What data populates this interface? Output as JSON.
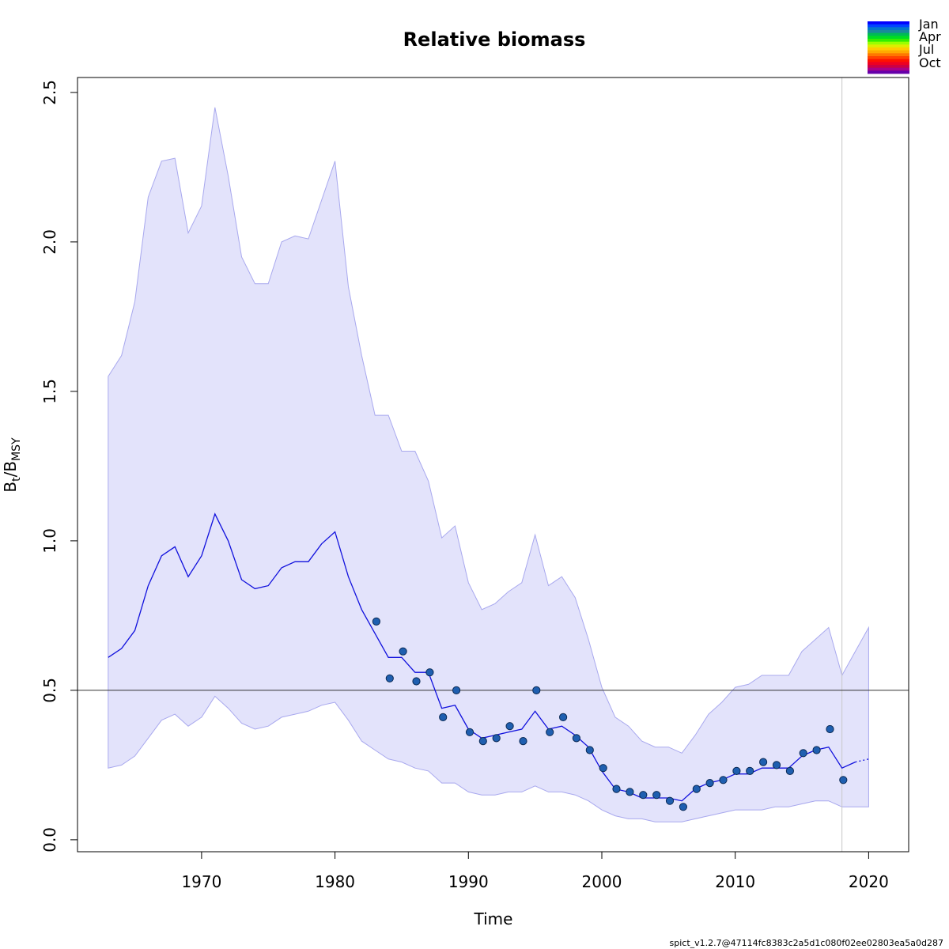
{
  "chart_data": {
    "type": "line",
    "title": "Relative biomass",
    "xlabel": "Time",
    "ylabel_main": "B",
    "ylabel_sub1": "t",
    "ylabel_sep": "/B",
    "ylabel_sub2": "MSY",
    "xlim": [
      1960.7,
      2023.0
    ],
    "ylim": [
      -0.04,
      2.55
    ],
    "x_ticks": [
      1970,
      1980,
      1990,
      2000,
      2010,
      2020
    ],
    "x_tick_labels": [
      "1970",
      "1980",
      "1990",
      "2000",
      "2010",
      "2020"
    ],
    "y_ticks": [
      0.0,
      0.5,
      1.0,
      1.5,
      2.0,
      2.5
    ],
    "y_tick_labels": [
      "0.0",
      "0.5",
      "1.0",
      "1.5",
      "2.0",
      "2.5"
    ],
    "reference_line_y": 0.5,
    "vertical_line_x": 2018.0,
    "colors": {
      "band": "#e3e3fb",
      "band_edge": "#a8a8ee",
      "estimate": "#1111dd",
      "points_fill": "#1f5fb0",
      "points_edge": "#0b2a55",
      "reference": "#333333",
      "vertical": "#c8c8c8"
    },
    "series": [
      {
        "role": "estimate",
        "x": [
          1963.0,
          1964.0,
          1965.0,
          1966.0,
          1967.0,
          1968.0,
          1969.0,
          1970.0,
          1971.0,
          1972.0,
          1973.0,
          1974.0,
          1975.0,
          1976.0,
          1977.0,
          1978.0,
          1979.0,
          1980.0,
          1981.0,
          1982.0,
          1983.0,
          1984.0,
          1985.0,
          1986.0,
          1987.0,
          1988.0,
          1989.0,
          1990.0,
          1991.0,
          1992.0,
          1993.0,
          1994.0,
          1995.0,
          1996.0,
          1997.0,
          1998.0,
          1999.0,
          2000.0,
          2001.0,
          2002.0,
          2003.0,
          2004.0,
          2005.0,
          2006.0,
          2007.0,
          2008.0,
          2009.0,
          2010.0,
          2011.0,
          2012.0,
          2013.0,
          2014.0,
          2015.0,
          2016.0,
          2017.0,
          2018.0,
          2019.0
        ],
        "y": [
          0.61,
          0.64,
          0.7,
          0.85,
          0.95,
          0.98,
          0.88,
          0.95,
          1.09,
          1.0,
          0.87,
          0.84,
          0.85,
          0.91,
          0.93,
          0.93,
          0.99,
          1.03,
          0.88,
          0.77,
          0.69,
          0.61,
          0.61,
          0.56,
          0.56,
          0.44,
          0.45,
          0.37,
          0.34,
          0.35,
          0.36,
          0.37,
          0.43,
          0.37,
          0.38,
          0.35,
          0.31,
          0.23,
          0.17,
          0.16,
          0.14,
          0.14,
          0.14,
          0.13,
          0.17,
          0.19,
          0.2,
          0.22,
          0.22,
          0.24,
          0.24,
          0.24,
          0.28,
          0.3,
          0.31,
          0.24,
          0.26
        ]
      },
      {
        "role": "forecast",
        "x": [
          2019.0,
          2020.0
        ],
        "y": [
          0.26,
          0.27
        ]
      },
      {
        "role": "upper-ci",
        "x": [
          1963.0,
          1964.0,
          1965.0,
          1966.0,
          1967.0,
          1968.0,
          1969.0,
          1970.0,
          1971.0,
          1972.0,
          1973.0,
          1974.0,
          1975.0,
          1976.0,
          1977.0,
          1978.0,
          1979.0,
          1980.0,
          1981.0,
          1982.0,
          1983.0,
          1984.0,
          1985.0,
          1986.0,
          1987.0,
          1988.0,
          1989.0,
          1990.0,
          1991.0,
          1992.0,
          1993.0,
          1994.0,
          1995.0,
          1996.0,
          1997.0,
          1998.0,
          1999.0,
          2000.0,
          2001.0,
          2002.0,
          2003.0,
          2004.0,
          2005.0,
          2006.0,
          2007.0,
          2008.0,
          2009.0,
          2010.0,
          2011.0,
          2012.0,
          2013.0,
          2014.0,
          2015.0,
          2016.0,
          2017.0,
          2018.0,
          2019.0,
          2020.0
        ],
        "y": [
          1.55,
          1.62,
          1.8,
          2.15,
          2.27,
          2.28,
          2.03,
          2.12,
          2.45,
          2.22,
          1.95,
          1.86,
          1.86,
          2.0,
          2.02,
          2.01,
          2.14,
          2.27,
          1.85,
          1.62,
          1.42,
          1.42,
          1.3,
          1.3,
          1.2,
          1.01,
          1.05,
          0.86,
          0.77,
          0.79,
          0.83,
          0.86,
          1.02,
          0.85,
          0.88,
          0.81,
          0.67,
          0.51,
          0.41,
          0.38,
          0.33,
          0.31,
          0.31,
          0.29,
          0.35,
          0.42,
          0.46,
          0.51,
          0.52,
          0.55,
          0.55,
          0.55,
          0.63,
          0.67,
          0.71,
          0.55,
          0.63,
          0.71
        ]
      },
      {
        "role": "lower-ci",
        "x": [
          1963.0,
          1964.0,
          1965.0,
          1966.0,
          1967.0,
          1968.0,
          1969.0,
          1970.0,
          1971.0,
          1972.0,
          1973.0,
          1974.0,
          1975.0,
          1976.0,
          1977.0,
          1978.0,
          1979.0,
          1980.0,
          1981.0,
          1982.0,
          1983.0,
          1984.0,
          1985.0,
          1986.0,
          1987.0,
          1988.0,
          1989.0,
          1990.0,
          1991.0,
          1992.0,
          1993.0,
          1994.0,
          1995.0,
          1996.0,
          1997.0,
          1998.0,
          1999.0,
          2000.0,
          2001.0,
          2002.0,
          2003.0,
          2004.0,
          2005.0,
          2006.0,
          2007.0,
          2008.0,
          2009.0,
          2010.0,
          2011.0,
          2012.0,
          2013.0,
          2014.0,
          2015.0,
          2016.0,
          2017.0,
          2018.0,
          2019.0,
          2020.0
        ],
        "y": [
          0.24,
          0.25,
          0.28,
          0.34,
          0.4,
          0.42,
          0.38,
          0.41,
          0.48,
          0.44,
          0.39,
          0.37,
          0.38,
          0.41,
          0.42,
          0.43,
          0.45,
          0.46,
          0.4,
          0.33,
          0.3,
          0.27,
          0.26,
          0.24,
          0.23,
          0.19,
          0.19,
          0.16,
          0.15,
          0.15,
          0.16,
          0.16,
          0.18,
          0.16,
          0.16,
          0.15,
          0.13,
          0.1,
          0.08,
          0.07,
          0.07,
          0.06,
          0.06,
          0.06,
          0.07,
          0.08,
          0.09,
          0.1,
          0.1,
          0.1,
          0.11,
          0.11,
          0.12,
          0.13,
          0.13,
          0.11,
          0.11,
          0.11
        ]
      },
      {
        "role": "observations",
        "x": [
          1983.1,
          1984.1,
          1985.1,
          1986.1,
          1987.1,
          1988.1,
          1989.1,
          1990.1,
          1991.1,
          1992.1,
          1993.1,
          1994.1,
          1995.1,
          1996.1,
          1997.1,
          1998.1,
          1999.1,
          2000.1,
          2001.1,
          2002.1,
          2003.1,
          2004.1,
          2005.1,
          2006.1,
          2007.1,
          2008.1,
          2009.1,
          2010.1,
          2011.1,
          2012.1,
          2013.1,
          2014.1,
          2015.1,
          2016.1,
          2017.1,
          2018.1
        ],
        "y": [
          0.73,
          0.54,
          0.63,
          0.53,
          0.56,
          0.41,
          0.5,
          0.36,
          0.33,
          0.34,
          0.38,
          0.33,
          0.5,
          0.36,
          0.41,
          0.34,
          0.3,
          0.24,
          0.17,
          0.16,
          0.15,
          0.15,
          0.13,
          0.11,
          0.17,
          0.19,
          0.2,
          0.23,
          0.23,
          0.26,
          0.25,
          0.23,
          0.29,
          0.3,
          0.37,
          0.2
        ]
      }
    ],
    "legend": {
      "position": "top-right",
      "labels": [
        "Jan",
        "Apr",
        "Jul",
        "Oct"
      ],
      "swatch_colors": [
        "#0000ff",
        "#0044ff",
        "#0077cc",
        "#1a8a99",
        "#00bb55",
        "#00dd22",
        "#33ee00",
        "#99ff00",
        "#ddee00",
        "#ffcc00",
        "#ffaa00",
        "#ff7700",
        "#ff4400",
        "#ff1100",
        "#ee0022",
        "#cc0044",
        "#aa0088",
        "#6600aa"
      ]
    },
    "footer": "spict_v1.2.7@47114fc8383c2a5d1c080f02ee02803ea5a0d287"
  }
}
